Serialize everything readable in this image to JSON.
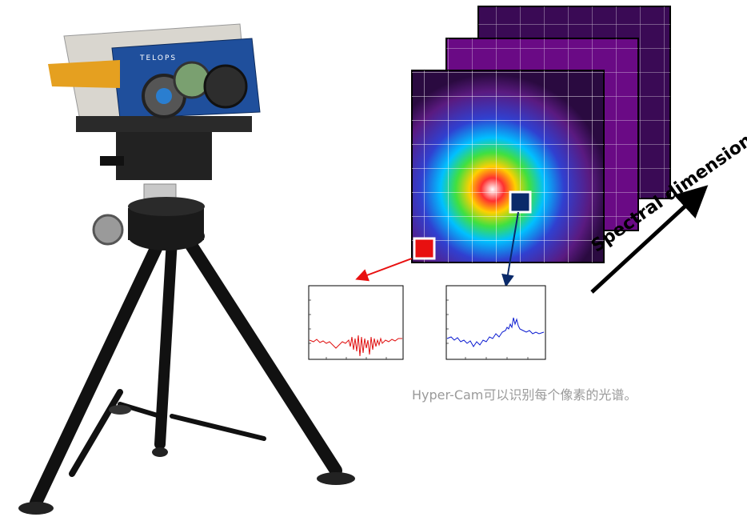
{
  "caption": "Hyper-Cam可以识别每个像素的光谱。",
  "spectral_axis_label": "Spectral dimension",
  "camera_brand": "TELOPS",
  "colors": {
    "red_pixel": "#e81010",
    "blue_pixel": "#0a2a6a",
    "red_spectrum": "#e01010",
    "blue_spectrum": "#0a1ad0",
    "caption_text": "#9a9a9a"
  },
  "icons": [
    "tripod-camera",
    "hyperspectral-cube",
    "spectrum-plot-red",
    "spectrum-plot-blue",
    "spectral-arrow"
  ]
}
